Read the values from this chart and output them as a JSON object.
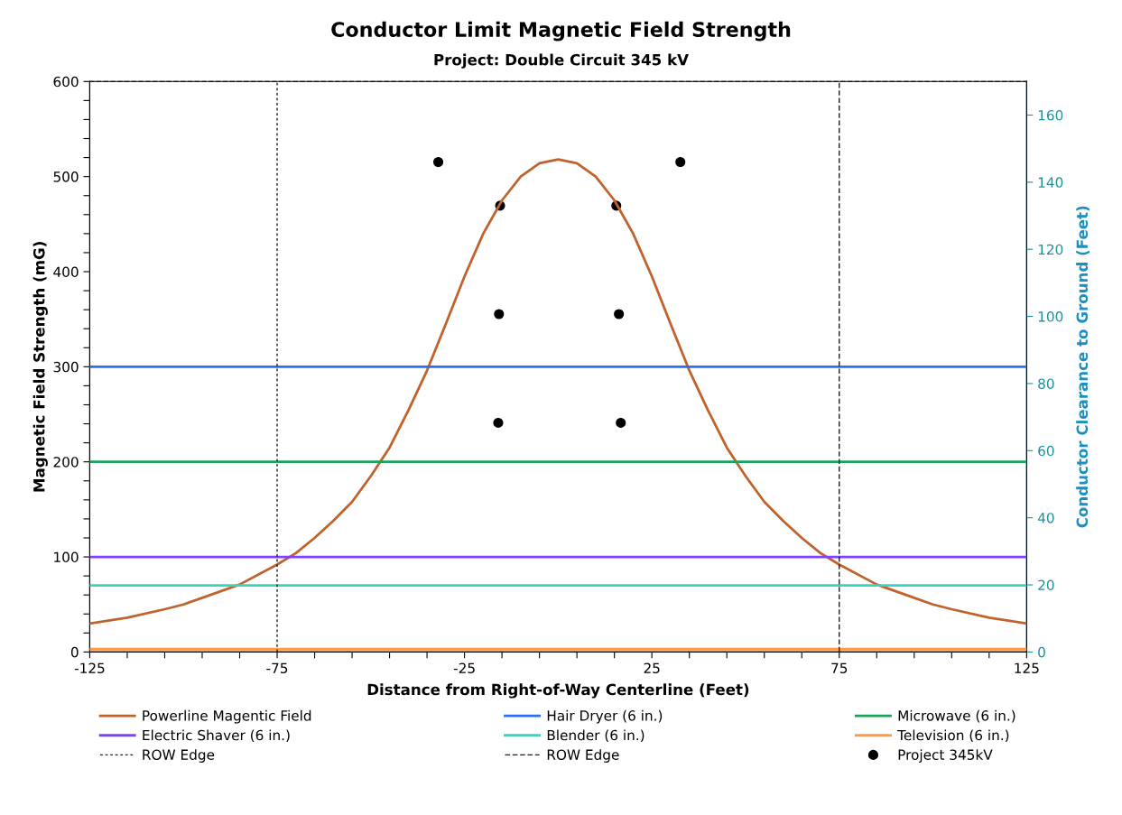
{
  "chart_data": {
    "type": "line",
    "title": "Conductor Limit Magnetic Field Strength",
    "subtitle": "Project: Double Circuit 345 kV",
    "xlabel": "Distance from Right-of-Way Centerline (Feet)",
    "ylabel": "Magnetic Field Strength (mG)",
    "y2label": "Conductor Clearance to Ground (Feet)",
    "xlim": [
      -125,
      125
    ],
    "xticks": [
      {
        "value": -125,
        "label": "-125"
      },
      {
        "value": -115,
        "label": null
      },
      {
        "value": -105,
        "label": null
      },
      {
        "value": -95,
        "label": null
      },
      {
        "value": -85,
        "label": null
      },
      {
        "value": -75,
        "label": "-75"
      },
      {
        "value": -65,
        "label": null
      },
      {
        "value": -55,
        "label": null
      },
      {
        "value": -45,
        "label": null
      },
      {
        "value": -35,
        "label": null
      },
      {
        "value": -25,
        "label": "-25"
      },
      {
        "value": -15,
        "label": null
      },
      {
        "value": -5,
        "label": null
      },
      {
        "value": 5,
        "label": null
      },
      {
        "value": 15,
        "label": null
      },
      {
        "value": 25,
        "label": "25"
      },
      {
        "value": 35,
        "label": null
      },
      {
        "value": 45,
        "label": null
      },
      {
        "value": 55,
        "label": null
      },
      {
        "value": 65,
        "label": null
      },
      {
        "value": 75,
        "label": "75"
      },
      {
        "value": 85,
        "label": null
      },
      {
        "value": 95,
        "label": null
      },
      {
        "value": 105,
        "label": null
      },
      {
        "value": 115,
        "label": null
      },
      {
        "value": 125,
        "label": "125"
      }
    ],
    "ylim": [
      0,
      600
    ],
    "yticks": [
      0,
      {
        "value": 20,
        "label": null
      },
      {
        "value": 40,
        "label": null
      },
      {
        "value": 60,
        "label": null
      },
      {
        "value": 80,
        "label": null
      },
      100,
      {
        "value": 120,
        "label": null
      },
      {
        "value": 140,
        "label": null
      },
      {
        "value": 160,
        "label": null
      },
      {
        "value": 180,
        "label": null
      },
      200,
      {
        "value": 220,
        "label": null
      },
      {
        "value": 240,
        "label": null
      },
      {
        "value": 260,
        "label": null
      },
      {
        "value": 280,
        "label": null
      },
      300,
      {
        "value": 320,
        "label": null
      },
      {
        "value": 340,
        "label": null
      },
      {
        "value": 360,
        "label": null
      },
      {
        "value": 380,
        "label": null
      },
      400,
      {
        "value": 420,
        "label": null
      },
      {
        "value": 440,
        "label": null
      },
      {
        "value": 460,
        "label": null
      },
      {
        "value": 480,
        "label": null
      },
      500,
      {
        "value": 520,
        "label": null
      },
      {
        "value": 540,
        "label": null
      },
      {
        "value": 560,
        "label": null
      },
      {
        "value": 580,
        "label": null
      },
      600
    ],
    "y2lim": [
      0,
      170
    ],
    "y2ticks": [
      0,
      20,
      40,
      60,
      80,
      100,
      120,
      140,
      160
    ],
    "grid": false,
    "legend": "bottom",
    "series": [
      {
        "name": "Powerline Magentic Field",
        "color": "#c0622b",
        "line_style": "solid",
        "x": [
          -125,
          -115,
          -105,
          -100,
          -95,
          -85,
          -75,
          -70,
          -65,
          -60,
          -55,
          -50,
          -47.5,
          -45,
          -40,
          -35,
          -30,
          -25,
          -20,
          -15,
          -10,
          -5,
          0,
          5,
          10,
          15,
          20,
          25,
          30,
          35,
          40,
          45,
          47.5,
          50,
          55,
          60,
          65,
          70,
          75,
          85,
          95,
          100,
          105,
          115,
          125
        ],
        "values": [
          30,
          36,
          45,
          50,
          57,
          71,
          92,
          104,
          120,
          138,
          158,
          185,
          200,
          215,
          254,
          296,
          345,
          395,
          440,
          475,
          500,
          514,
          518,
          514,
          500,
          475,
          440,
          395,
          345,
          296,
          254,
          215,
          200,
          185,
          158,
          138,
          120,
          104,
          92,
          71,
          57,
          50,
          45,
          36,
          30
        ]
      },
      {
        "name": "Hair Dryer (6 in.)",
        "color": "#2a70f0",
        "line_style": "solid",
        "x": [
          -125,
          125
        ],
        "values": [
          300,
          300
        ]
      },
      {
        "name": "Microwave (6 in.)",
        "color": "#1aa35a",
        "line_style": "solid",
        "x": [
          -125,
          125
        ],
        "values": [
          200,
          200
        ]
      },
      {
        "name": "Electric Shaver (6 in.)",
        "color": "#8040ff",
        "line_style": "solid",
        "x": [
          -125,
          125
        ],
        "values": [
          100,
          100
        ]
      },
      {
        "name": "Blender (6 in.)",
        "color": "#33d6c0",
        "line_style": "solid",
        "x": [
          -125,
          125
        ],
        "values": [
          70,
          70
        ]
      },
      {
        "name": "Television (6 in.)",
        "color": "#ff9a40",
        "line_style": "solid",
        "x": [
          -125,
          125
        ],
        "values": [
          3,
          3
        ]
      },
      {
        "name": "ROW Edge",
        "color": "#202020",
        "line_style": "dotted",
        "x": [
          -75,
          -75
        ],
        "values": [
          0,
          600
        ]
      },
      {
        "name": "ROW Edge",
        "color": "#202020",
        "line_style": "dashed",
        "x": [
          75,
          75
        ],
        "values": [
          0,
          600
        ]
      },
      {
        "name": "Project 345kV",
        "type": "scatter",
        "axis": "y2",
        "marker": "circle",
        "color": "#000000",
        "x": [
          -32,
          -15.5,
          -15.8,
          -16,
          15.5,
          16.2,
          16.7,
          32.6
        ],
        "values": [
          146,
          133,
          100.7,
          68.3,
          133,
          100.7,
          68.3,
          146
        ]
      }
    ]
  }
}
